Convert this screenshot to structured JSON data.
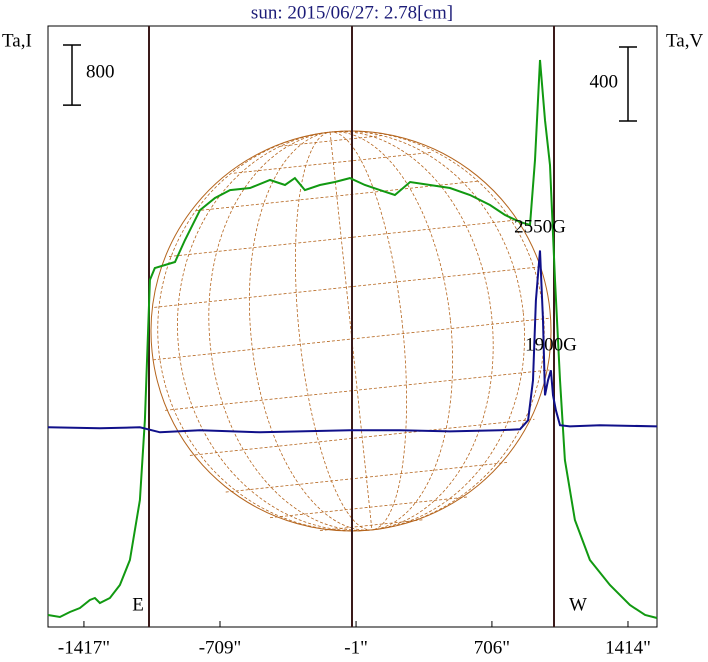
{
  "chart_data": {
    "type": "line",
    "title": "sun: 2015/06/27: 2.78[cm]",
    "y_label": "Ta,I",
    "y2_label": "Ta,V",
    "xlim": [
      -1604,
      1565
    ],
    "ylim": [
      0,
      8000
    ],
    "y2lim": [
      -1080,
      2170
    ],
    "xticks": [
      {
        "value": -1417,
        "label": "-1417\""
      },
      {
        "value": -709,
        "label": "-709\""
      },
      {
        "value": -1,
        "label": "-1\""
      },
      {
        "value": 706,
        "label": "706\""
      },
      {
        "value": 1414,
        "label": "1414\""
      }
    ],
    "scale_bars": [
      {
        "value": 800,
        "axis": "y"
      },
      {
        "value": 400,
        "axis": "y2"
      }
    ],
    "annotations": [
      "2550G",
      "1900G",
      "E",
      "W"
    ],
    "series": [
      {
        "color": "#119911",
        "x": [
          -1604,
          -1542,
          -1490,
          -1438,
          -1386,
          -1360,
          -1334,
          -1282,
          -1230,
          -1178,
          -1126,
          -1100,
          -1074,
          -1048,
          -995,
          -943,
          -891,
          -813,
          -735,
          -657,
          -553,
          -449,
          -371,
          -319,
          -267,
          -189,
          -111,
          -33,
          45,
          123,
          201,
          280,
          384,
          488,
          592,
          696,
          774,
          852,
          904,
          930,
          956,
          982,
          1008,
          1034,
          1060,
          1086,
          1138,
          1216,
          1320,
          1424,
          1503,
          1565
        ],
        "values": [
          160,
          133,
          200,
          253,
          359,
          386,
          319,
          386,
          559,
          892,
          1690,
          2755,
          4619,
          4778,
          4818,
          4858,
          5151,
          5550,
          5710,
          5816,
          5843,
          5950,
          5883,
          5976,
          5816,
          5883,
          5923,
          5976,
          5883,
          5816,
          5750,
          5923,
          5883,
          5843,
          5750,
          5617,
          5484,
          5391,
          5351,
          6216,
          7547,
          6748,
          6149,
          4619,
          3288,
          2223,
          1424,
          892,
          559,
          293,
          160,
          120
        ]
      },
      {
        "color": "#10108a",
        "axis": "y2",
        "x": [
          -1604,
          -1334,
          -1126,
          -1021,
          -813,
          -501,
          -293,
          -33,
          227,
          488,
          748,
          852,
          894,
          920,
          935,
          956,
          972,
          982,
          998,
          1013,
          1024,
          1039,
          1060,
          1112,
          1268,
          1565
        ],
        "values": [
          0,
          -5,
          0,
          -27,
          -16,
          -27,
          -22,
          -16,
          -16,
          -22,
          -16,
          -11,
          38,
          254,
          686,
          956,
          578,
          173,
          254,
          308,
          173,
          92,
          11,
          5,
          11,
          5
        ]
      }
    ]
  }
}
